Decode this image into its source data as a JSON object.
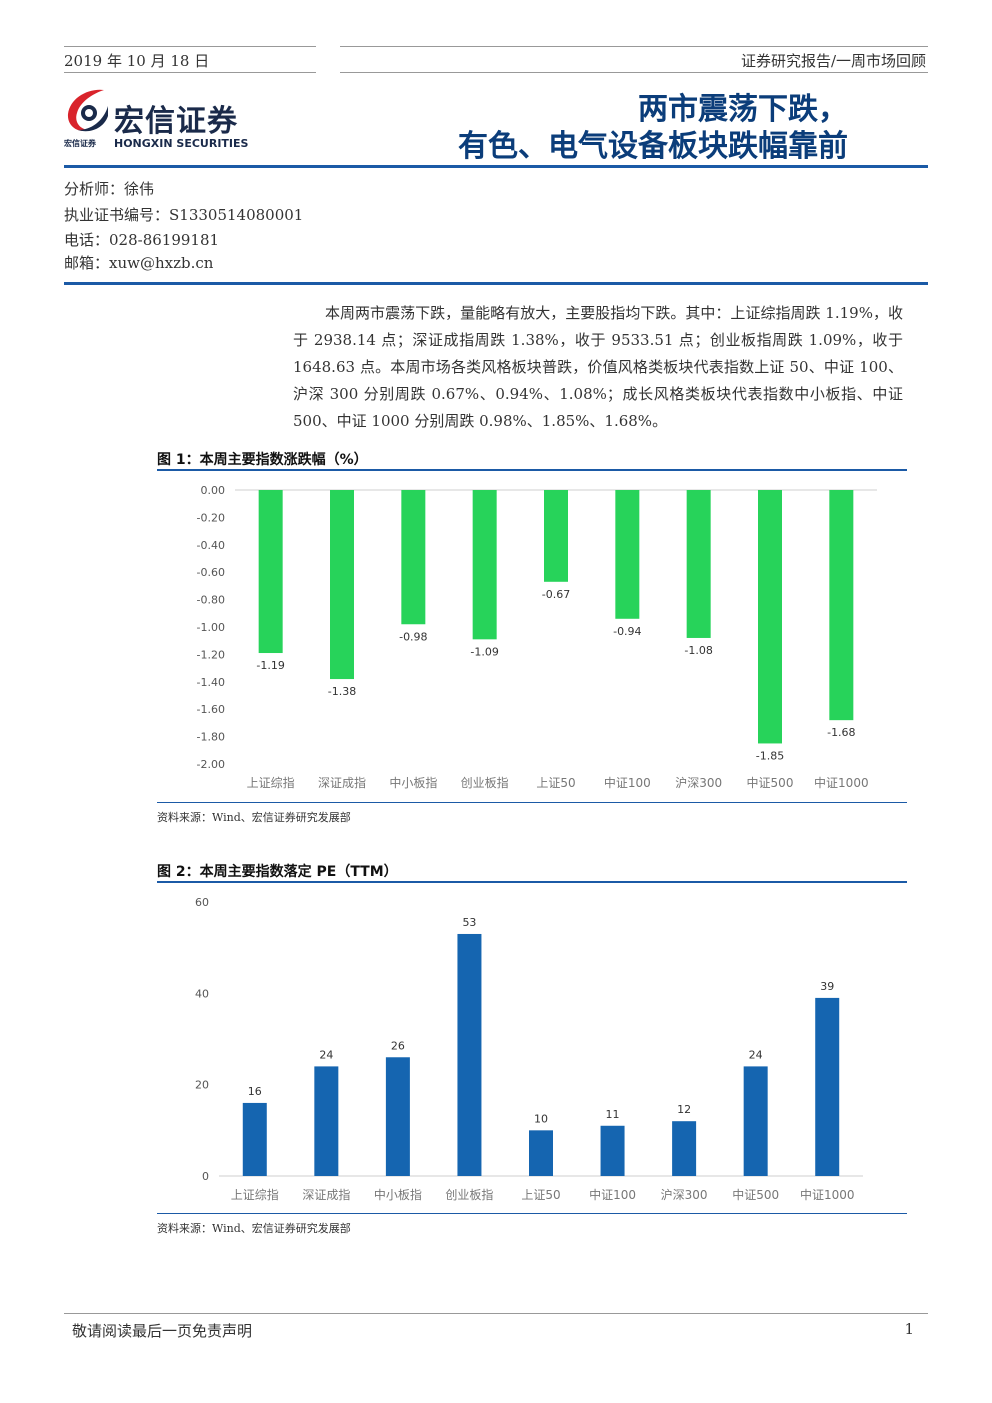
{
  "header": {
    "date": "2019 年 10 月 18 日",
    "category": "证券研究报告/一周市场回顾"
  },
  "logo": {
    "name_cn": "宏信证券",
    "name_en": "HONGXIN SECURITIES",
    "small_cn": "宏信证券"
  },
  "title": {
    "line1": "两市震荡下跌，",
    "line2": "有色、电气设备板块跌幅靠前"
  },
  "analyst": {
    "name_line": "分析师：徐伟",
    "cert_line": "执业证书编号：S1330514080001",
    "phone_line": "电话：028-86199181",
    "email_line": "邮箱：xuw@hxzb.cn"
  },
  "summary": "本周两市震荡下跌，量能略有放大，主要股指均下跌。其中：上证综指周跌 1.19%，收于 2938.14 点；深证成指周跌 1.38%，收于 9533.51 点；创业板指周跌 1.09%，收于 1648.63 点。本周市场各类风格板块普跌，价值风格类板块代表指数上证 50、中证 100、沪深 300 分别周跌 0.67%、0.94%、1.08%；成长风格类板块代表指数中小板指、中证 500、中证 1000 分别周跌 0.98%、1.85%、1.68%。",
  "figure1": {
    "title": "图 1：本周主要指数涨跌幅（%）",
    "source": "资料来源：Wind、宏信证券研究发展部"
  },
  "figure2": {
    "title": "图 2：本周主要指数落定 PE（TTM）",
    "source": "资料来源：Wind、宏信证券研究发展部"
  },
  "chart_data": [
    {
      "type": "bar",
      "title": "本周主要指数涨跌幅（%）",
      "categories": [
        "上证综指",
        "深证成指",
        "中小板指",
        "创业板指",
        "上证50",
        "中证100",
        "沪深300",
        "中证500",
        "中证1000"
      ],
      "values": [
        -1.19,
        -1.38,
        -0.98,
        -1.09,
        -0.67,
        -0.94,
        -1.08,
        -1.85,
        -1.68
      ],
      "labels": [
        "-1.19",
        "-1.38",
        "-0.98",
        "-1.09",
        "-0.67",
        "-0.94",
        "-1.08",
        "-1.85",
        "-1.68"
      ],
      "yticks": [
        "0.00",
        "-0.20",
        "-0.40",
        "-0.60",
        "-0.80",
        "-1.00",
        "-1.20",
        "-1.40",
        "-1.60",
        "-1.80",
        "-2.00"
      ],
      "ylim": [
        -2,
        0
      ],
      "grid": false,
      "color": "#27d35a"
    },
    {
      "type": "bar",
      "title": "本周主要指数落定 PE（TTM）",
      "categories": [
        "上证综指",
        "深证成指",
        "中小板指",
        "创业板指",
        "上证50",
        "中证100",
        "沪深300",
        "中证500",
        "中证1000"
      ],
      "values": [
        16,
        24,
        26,
        53,
        10,
        11,
        12,
        24,
        39
      ],
      "labels": [
        "16",
        "24",
        "26",
        "53",
        "10",
        "11",
        "12",
        "24",
        "39"
      ],
      "yticks": [
        "0",
        "20",
        "40",
        "60"
      ],
      "ylim": [
        0,
        60
      ],
      "grid": false,
      "color": "#1565b0"
    }
  ],
  "footer": {
    "disclaimer": "敬请阅读最后一页免责声明",
    "page": "1"
  }
}
